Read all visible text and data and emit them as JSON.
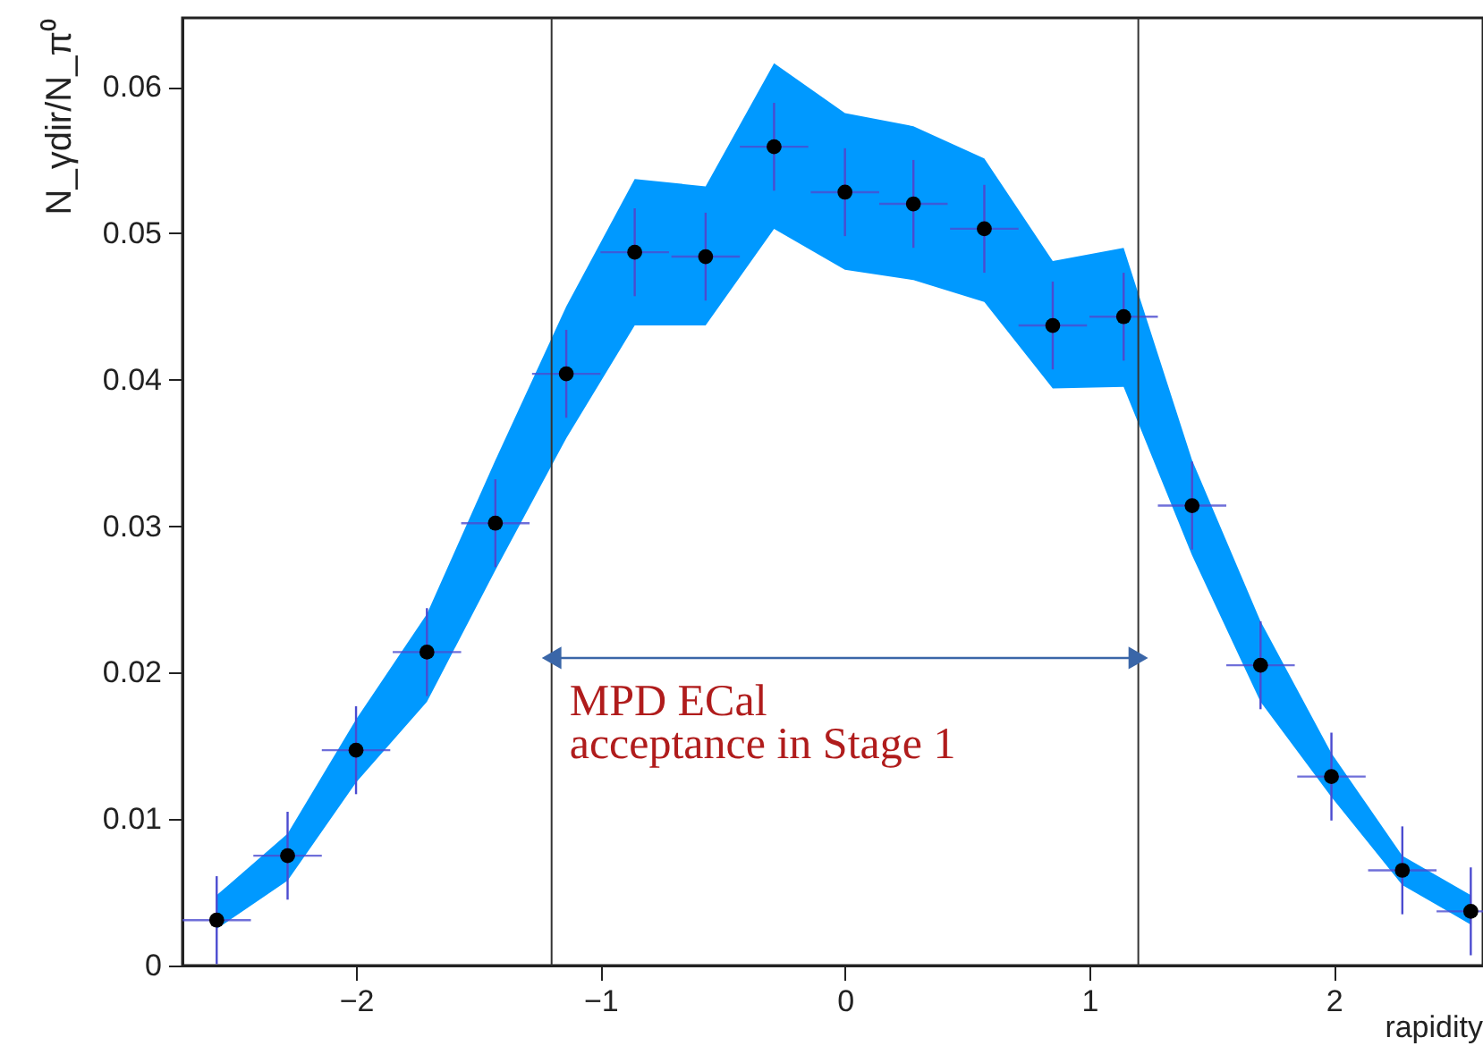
{
  "chart_data": {
    "type": "scatter",
    "xlabel": "rapidity",
    "ylabel": "N_γdir/N_π⁰",
    "x": [
      -2.57,
      -2.28,
      -2.0,
      -1.71,
      -1.43,
      -1.14,
      -0.86,
      -0.57,
      -0.29,
      0.0,
      0.28,
      0.57,
      0.85,
      1.14,
      1.42,
      1.7,
      1.99,
      2.28,
      2.56
    ],
    "series": [
      {
        "color": "#000000",
        "values": [
          0.0031,
          0.0075,
          0.0147,
          0.0214,
          0.0302,
          0.0404,
          0.0487,
          0.0484,
          0.0559,
          0.0528,
          0.052,
          0.0503,
          0.0437,
          0.0443,
          0.0314,
          0.0205,
          0.0129,
          0.0065,
          0.0037
        ],
        "errors": [
          0.003,
          0.003,
          0.003,
          0.003,
          0.003,
          0.003,
          0.003,
          0.003,
          0.003,
          0.003,
          0.003,
          0.003,
          0.003,
          0.003,
          0.003,
          0.003,
          0.003,
          0.003,
          0.003
        ],
        "xerrors": [
          0.14,
          0.14,
          0.14,
          0.14,
          0.14,
          0.14,
          0.14,
          0.14,
          0.14,
          0.14,
          0.14,
          0.14,
          0.14,
          0.14,
          0.14,
          0.14,
          0.14,
          0.14,
          0.14
        ],
        "lower": [
          0.0025,
          0.0058,
          0.0125,
          0.018,
          0.027,
          0.036,
          0.0437,
          0.0437,
          0.0503,
          0.0475,
          0.0468,
          0.0453,
          0.0394,
          0.0395,
          0.028,
          0.018,
          0.0115,
          0.0055,
          0.0028
        ],
        "upper": [
          0.0048,
          0.009,
          0.0168,
          0.024,
          0.0345,
          0.045,
          0.0537,
          0.0532,
          0.0616,
          0.0582,
          0.0573,
          0.0551,
          0.0481,
          0.049,
          0.0345,
          0.0235,
          0.0145,
          0.0075,
          0.0048
        ]
      }
    ],
    "marker": "circle",
    "xlim": [
      -2.71,
      2.61
    ],
    "ylim": [
      0,
      0.0647
    ],
    "xticks": [
      -2,
      -1,
      0,
      1,
      2
    ],
    "yticks": [
      0,
      0.01,
      0.02,
      0.03,
      0.04,
      0.05,
      0.06
    ],
    "grid": false,
    "ref_lines": [
      {
        "axis": "x",
        "value": -1.2,
        "color": "#333333"
      },
      {
        "axis": "x",
        "value": 1.2,
        "color": "#333333"
      }
    ],
    "annotations": [
      {
        "text": "MPD ECal\nacceptance in Stage 1",
        "x": -1.2,
        "y": 0.021
      }
    ]
  }
}
